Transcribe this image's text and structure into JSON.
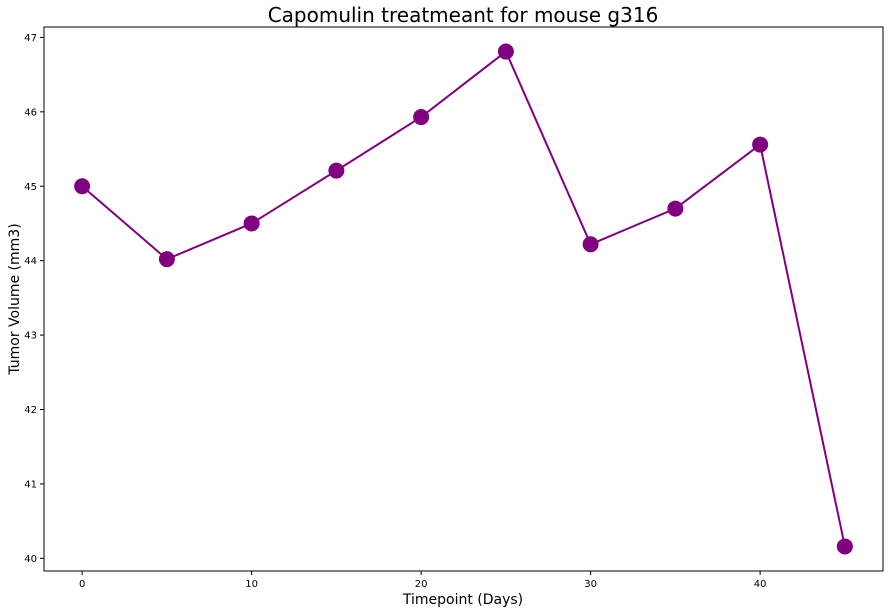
{
  "chart_data": {
    "type": "line",
    "title": "Capomulin treatmeant for mouse g316",
    "xlabel": "Timepoint (Days)",
    "ylabel": "Tumor Volume (mm3)",
    "x": [
      0,
      5,
      10,
      15,
      20,
      25,
      30,
      35,
      40,
      45
    ],
    "series": [
      {
        "values": [
          45.0,
          44.02,
          44.5,
          45.21,
          45.93,
          46.81,
          44.22,
          44.7,
          45.56,
          40.16
        ],
        "color": "#800080",
        "marker": "circle"
      }
    ],
    "xlim": [
      -2.25,
      47.25
    ],
    "ylim": [
      39.83,
      47.14
    ],
    "xticks": [
      0,
      10,
      20,
      30,
      40
    ],
    "yticks": [
      40,
      41,
      42,
      43,
      44,
      45,
      46,
      47
    ],
    "grid": false,
    "legend": false
  }
}
